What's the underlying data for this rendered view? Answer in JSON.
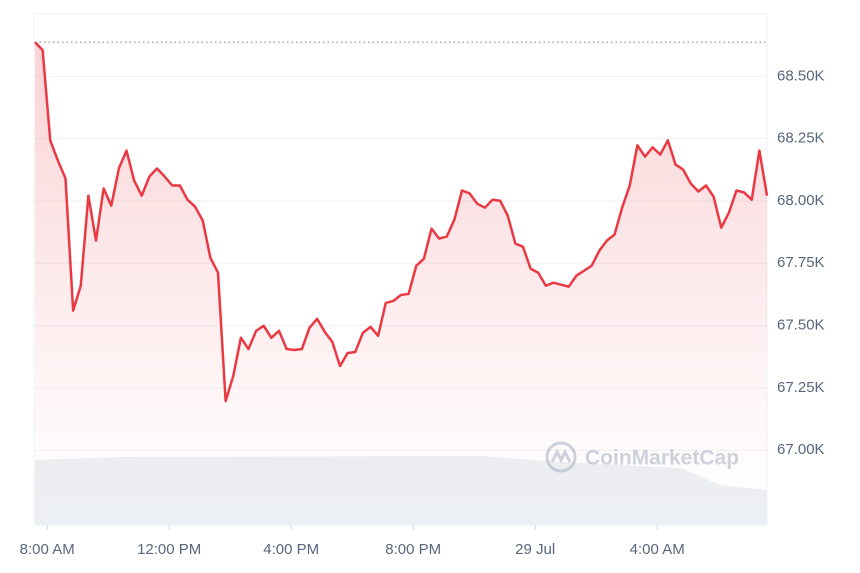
{
  "chart_data": {
    "type": "line",
    "watermark": "CoinMarketCap",
    "x": [
      -0.4,
      -0.15,
      0.1,
      0.35,
      0.6,
      0.85,
      1.1,
      1.35,
      1.6,
      1.85,
      2.1,
      2.35,
      2.6,
      2.85,
      3.1,
      3.35,
      3.6,
      3.85,
      4.1,
      4.35,
      4.6,
      4.85,
      5.1,
      5.35,
      5.6,
      5.85,
      6.1,
      6.35,
      6.6,
      6.85,
      7.1,
      7.35,
      7.6,
      7.85,
      8.1,
      8.35,
      8.6,
      8.85,
      9.1,
      9.35,
      9.6,
      9.85,
      10.1,
      10.35,
      10.6,
      10.85,
      11.1,
      11.35,
      11.6,
      11.85,
      12.1,
      12.35,
      12.6,
      12.85,
      13.1,
      13.35,
      13.6,
      13.85,
      14.1,
      14.35,
      14.6,
      14.85,
      15.1,
      15.35,
      15.6,
      15.85,
      16.1,
      16.35,
      16.6,
      16.85,
      17.1,
      17.35,
      17.6,
      17.85,
      18.1,
      18.35,
      18.6,
      18.85,
      19.1,
      19.35,
      19.6,
      19.85,
      20.1,
      20.35,
      20.6,
      20.85,
      21.1,
      21.35,
      21.6,
      21.85,
      22.1,
      22.35,
      22.6,
      22.85,
      23.1,
      23.35,
      23.6
    ],
    "series": [
      {
        "color": "#ea3943",
        "values": [
          68637,
          68605,
          68243,
          68162,
          68090,
          67560,
          67660,
          68021,
          67841,
          68050,
          67981,
          68130,
          68202,
          68082,
          68021,
          68098,
          68130,
          68098,
          68062,
          68062,
          68005,
          67977,
          67921,
          67772,
          67712,
          67197,
          67298,
          67451,
          67406,
          67479,
          67499,
          67451,
          67479,
          67406,
          67402,
          67406,
          67491,
          67527,
          67475,
          67434,
          67338,
          67390,
          67394,
          67471,
          67495,
          67459,
          67591,
          67599,
          67623,
          67627,
          67740,
          67768,
          67889,
          67849,
          67857,
          67925,
          68042,
          68030,
          67989,
          67973,
          68005,
          68001,
          67941,
          67829,
          67816,
          67728,
          67712,
          67660,
          67672,
          67664,
          67656,
          67700,
          67720,
          67740,
          67800,
          67841,
          67865,
          67973,
          68062,
          68223,
          68178,
          68215,
          68186,
          68243,
          68146,
          68126,
          68070,
          68038,
          68062,
          68017,
          67893,
          67953,
          68042,
          68034,
          68005,
          68202,
          68021
        ]
      }
    ],
    "xlim": [
      -0.4,
      23.6
    ],
    "xticks": [
      {
        "value": 0,
        "label": "8:00 AM"
      },
      {
        "value": 4,
        "label": "12:00 PM"
      },
      {
        "value": 8,
        "label": "4:00 PM"
      },
      {
        "value": 12,
        "label": "8:00 PM"
      },
      {
        "value": 16,
        "label": "29 Jul"
      },
      {
        "value": 20,
        "label": "4:00 AM"
      }
    ],
    "ylim": [
      66700,
      68750
    ],
    "yticks": [
      {
        "value": 67000,
        "label": "67.00K"
      },
      {
        "value": 67250,
        "label": "67.25K"
      },
      {
        "value": 67500,
        "label": "67.50K"
      },
      {
        "value": 67750,
        "label": "67.75K"
      },
      {
        "value": 68000,
        "label": "68.00K"
      },
      {
        "value": 68250,
        "label": "68.25K"
      },
      {
        "value": 68500,
        "label": "68.50K"
      }
    ],
    "grid": true
  }
}
